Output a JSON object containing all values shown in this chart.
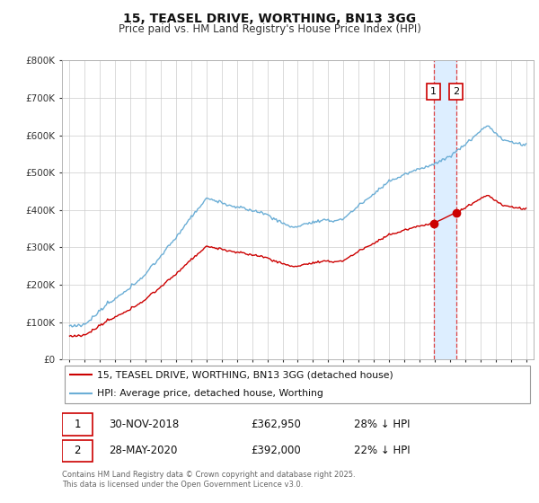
{
  "title": "15, TEASEL DRIVE, WORTHING, BN13 3GG",
  "subtitle": "Price paid vs. HM Land Registry's House Price Index (HPI)",
  "legend_line1": "15, TEASEL DRIVE, WORTHING, BN13 3GG (detached house)",
  "legend_line2": "HPI: Average price, detached house, Worthing",
  "footer": "Contains HM Land Registry data © Crown copyright and database right 2025.\nThis data is licensed under the Open Government Licence v3.0.",
  "annotation1_date": "30-NOV-2018",
  "annotation1_price": "£362,950",
  "annotation1_hpi": "28% ↓ HPI",
  "annotation2_date": "28-MAY-2020",
  "annotation2_price": "£392,000",
  "annotation2_hpi": "22% ↓ HPI",
  "sale1_x": 2018.92,
  "sale1_y": 362950,
  "sale2_x": 2020.41,
  "sale2_y": 392000,
  "hpi_color": "#6baed6",
  "price_color": "#cc0000",
  "vline_color": "#dd4444",
  "shade_color": "#ddeeff",
  "marker_color": "#cc0000",
  "ann_box_edge": "#cc0000",
  "ann_text_color": "#000000",
  "ylim_min": 0,
  "ylim_max": 800000,
  "xlim_min": 1994.5,
  "xlim_max": 2025.5,
  "yticks": [
    0,
    100000,
    200000,
    300000,
    400000,
    500000,
    600000,
    700000,
    800000
  ],
  "ytick_labels": [
    "£0",
    "£100K",
    "£200K",
    "£300K",
    "£400K",
    "£500K",
    "£600K",
    "£700K",
    "£800K"
  ]
}
